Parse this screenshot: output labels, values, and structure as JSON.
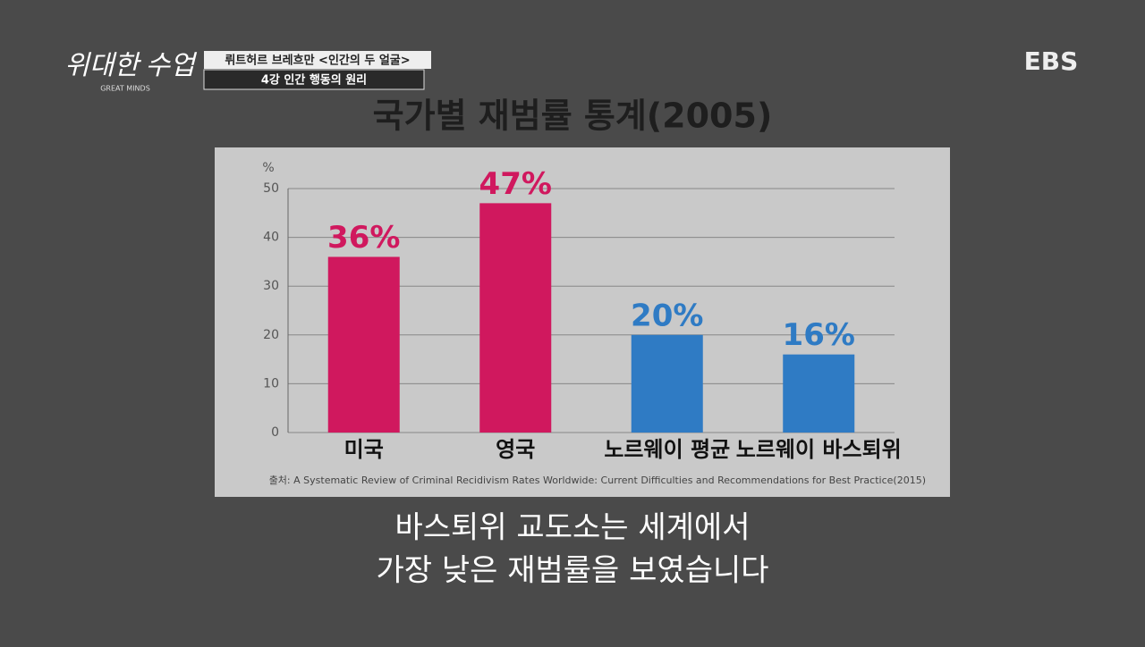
{
  "header": {
    "logo": "위대한 수업",
    "logo_sub": "GREAT MINDS",
    "program": "뤼트허르 브레흐만 <인간의 두 얼굴>",
    "episode": "4강 인간 행동의 원리",
    "channel": "EBS"
  },
  "chart_data": {
    "type": "bar",
    "title": "국가별 재범률 통계(2005)",
    "ylabel": "%",
    "categories": [
      "미국",
      "영국",
      "노르웨이 평균",
      "노르웨이 바스퇴위"
    ],
    "values": [
      36,
      47,
      20,
      16
    ],
    "value_labels": [
      "36%",
      "47%",
      "20%",
      "16%"
    ],
    "colors": [
      "#d0185e",
      "#d0185e",
      "#2f7bc4",
      "#2f7bc4"
    ],
    "ylim": [
      0,
      50
    ],
    "yticks": [
      0,
      10,
      20,
      30,
      40,
      50
    ],
    "grid": true,
    "source": "출처: A Systematic Review of Criminal Recidivism Rates Worldwide: Current Difficulties and Recommendations for Best Practice(2015)"
  },
  "caption": [
    "바스퇴위 교도소는 세계에서",
    "가장 낮은 재범률을 보였습니다"
  ]
}
